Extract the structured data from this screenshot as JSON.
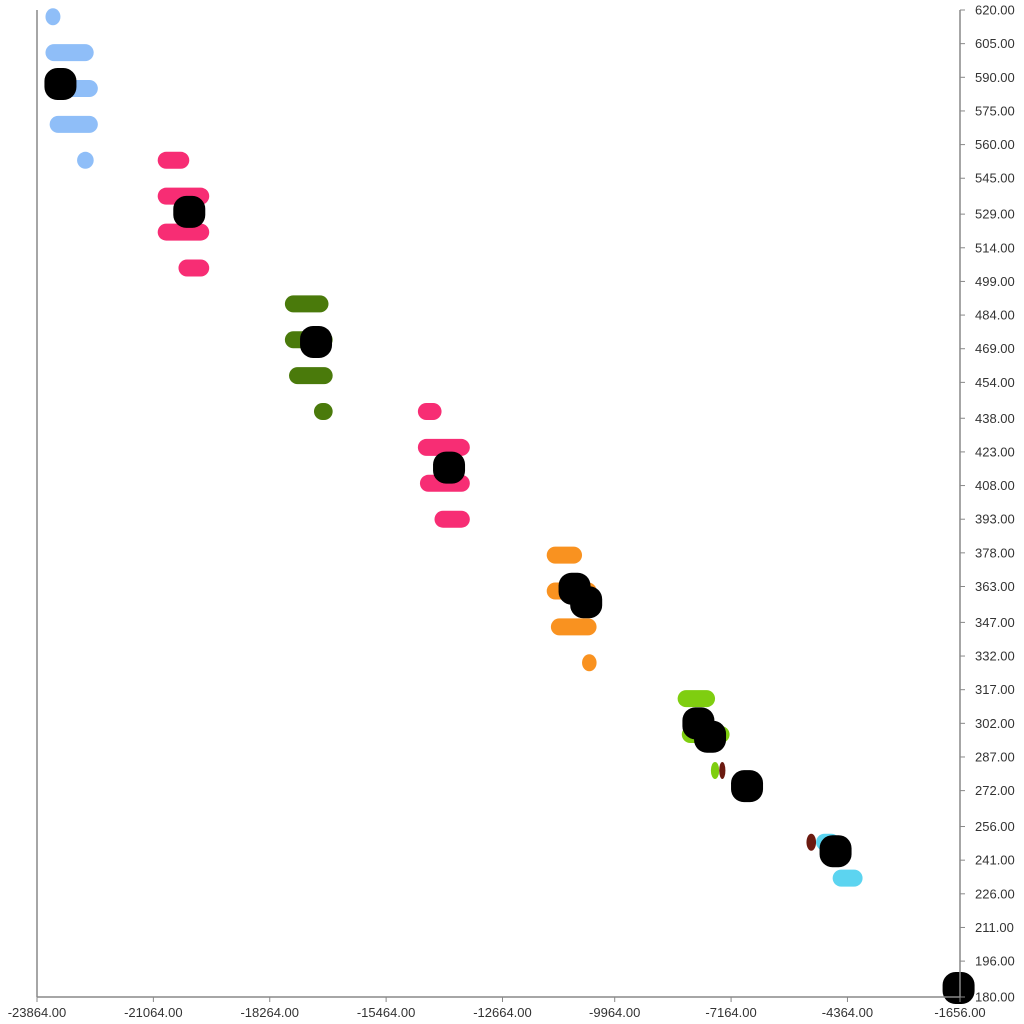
{
  "chart_data": {
    "type": "scatter",
    "title": "",
    "xlabel": "",
    "ylabel": "",
    "xlim": [
      -23864,
      -1656
    ],
    "ylim": [
      180,
      620
    ],
    "grid": false,
    "legend": "none",
    "y_axis_side": "right",
    "x_ticks": [
      "-23864.00",
      "-21064.00",
      "-18264.00",
      "-15464.00",
      "-12664.00",
      "-9964.00",
      "-7164.00",
      "-4364.00",
      "-1656.00"
    ],
    "x_tick_values": [
      -23864,
      -21064,
      -18264,
      -15464,
      -12664,
      -9964,
      -7164,
      -4364,
      -1656
    ],
    "y_ticks": [
      "620.00",
      "605.00",
      "590.00",
      "575.00",
      "560.00",
      "545.00",
      "529.00",
      "514.00",
      "499.00",
      "484.00",
      "469.00",
      "454.00",
      "438.00",
      "423.00",
      "408.00",
      "393.00",
      "378.00",
      "363.00",
      "347.00",
      "332.00",
      "317.00",
      "302.00",
      "287.00",
      "272.00",
      "256.00",
      "241.00",
      "226.00",
      "211.00",
      "196.00",
      "180.00"
    ],
    "y_tick_values": [
      620,
      605,
      590,
      575,
      560,
      545,
      529,
      514,
      499,
      484,
      469,
      454,
      438,
      423,
      408,
      393,
      378,
      363,
      347,
      332,
      317,
      302,
      287,
      272,
      256,
      241,
      226,
      211,
      196,
      180
    ],
    "bar_series": [
      {
        "color": "#8fbef8",
        "bars": [
          {
            "x0": -23660,
            "x1": -23300,
            "y": 617
          },
          {
            "x0": -23660,
            "x1": -22500,
            "y": 601
          },
          {
            "x0": -23660,
            "x1": -22400,
            "y": 585
          },
          {
            "x0": -23560,
            "x1": -22400,
            "y": 569
          },
          {
            "x0": -22900,
            "x1": -22500,
            "y": 553
          }
        ]
      },
      {
        "color": "#f72d74",
        "bars": [
          {
            "x0": -20960,
            "x1": -20200,
            "y": 553
          },
          {
            "x0": -20960,
            "x1": -19720,
            "y": 537
          },
          {
            "x0": -20960,
            "x1": -19720,
            "y": 521
          },
          {
            "x0": -20460,
            "x1": -19720,
            "y": 505
          }
        ]
      },
      {
        "color": "#4a7a0b",
        "bars": [
          {
            "x0": -17900,
            "x1": -16850,
            "y": 489
          },
          {
            "x0": -17900,
            "x1": -16750,
            "y": 473
          },
          {
            "x0": -17800,
            "x1": -16750,
            "y": 457
          },
          {
            "x0": -17200,
            "x1": -16750,
            "y": 441
          }
        ]
      },
      {
        "color": "#f72d74",
        "bars": [
          {
            "x0": -14700,
            "x1": -14130,
            "y": 441
          },
          {
            "x0": -14700,
            "x1": -13450,
            "y": 425
          },
          {
            "x0": -14650,
            "x1": -13450,
            "y": 409
          },
          {
            "x0": -14300,
            "x1": -13450,
            "y": 393
          }
        ]
      },
      {
        "color": "#f99220",
        "bars": [
          {
            "x0": -11600,
            "x1": -10750,
            "y": 377
          },
          {
            "x0": -11600,
            "x1": -10400,
            "y": 361
          },
          {
            "x0": -11500,
            "x1": -10400,
            "y": 345
          },
          {
            "x0": -10750,
            "x1": -10400,
            "y": 329
          }
        ]
      },
      {
        "color": "#7fce10",
        "bars": [
          {
            "x0": -8450,
            "x1": -7550,
            "y": 313
          },
          {
            "x0": -8350,
            "x1": -7200,
            "y": 297
          },
          {
            "x0": -7650,
            "x1": -7450,
            "y": 281
          }
        ]
      },
      {
        "color": "#6b1a10",
        "bars": [
          {
            "x0": -7450,
            "x1": -7300,
            "y": 281
          },
          {
            "x0": -5350,
            "x1": -5120,
            "y": 249
          }
        ]
      },
      {
        "color": "#5cd4f0",
        "bars": [
          {
            "x0": -5120,
            "x1": -4550,
            "y": 249
          },
          {
            "x0": -4720,
            "x1": -4000,
            "y": 233
          }
        ]
      }
    ],
    "points": [
      {
        "x": -23300,
        "y": 587
      },
      {
        "x": -20200,
        "y": 530
      },
      {
        "x": -17150,
        "y": 472
      },
      {
        "x": -13950,
        "y": 416
      },
      {
        "x": -10930,
        "y": 362
      },
      {
        "x": -10650,
        "y": 356
      },
      {
        "x": -7950,
        "y": 302
      },
      {
        "x": -7670,
        "y": 296
      },
      {
        "x": -6780,
        "y": 274
      },
      {
        "x": -4650,
        "y": 245
      },
      {
        "x": -1690,
        "y": 184
      }
    ],
    "point_color": "#000000"
  }
}
